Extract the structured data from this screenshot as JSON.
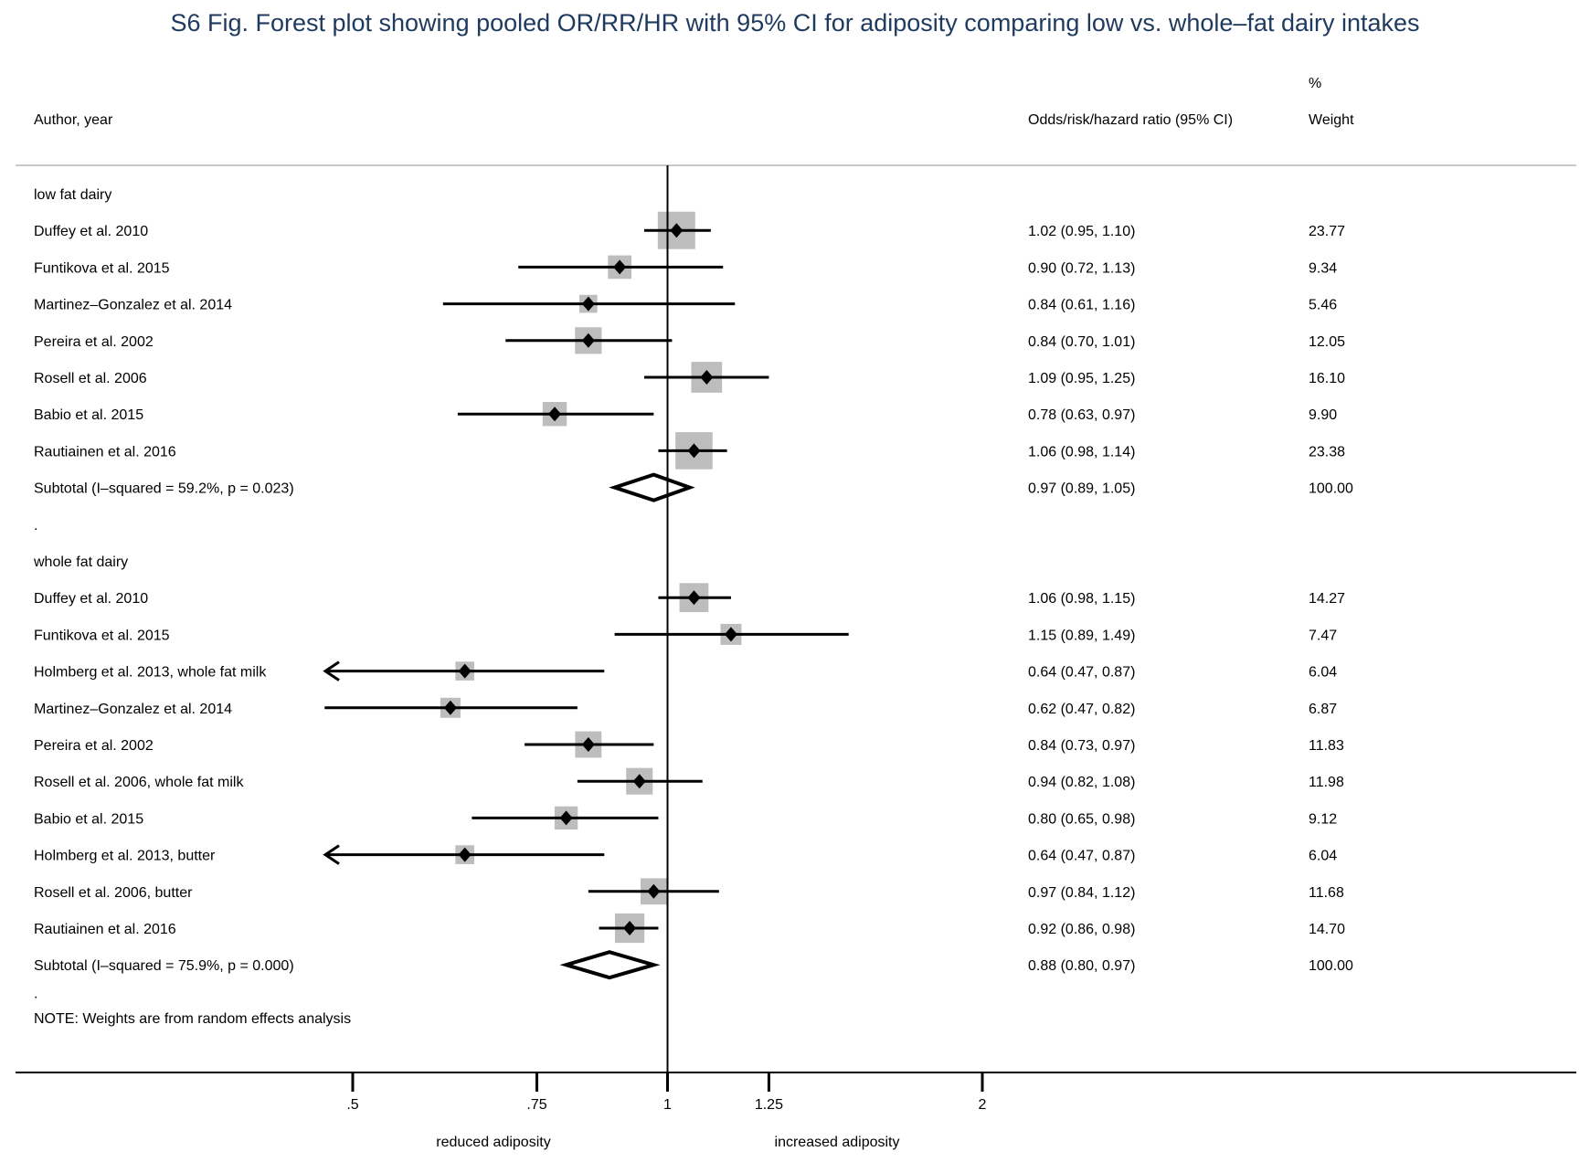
{
  "chart_data": {
    "type": "forest",
    "title": "S6 Fig. Forest plot showing pooled OR/RR/HR with 95% CI for adiposity comparing low vs. whole–fat dairy intakes",
    "headers": {
      "author": "Author, year",
      "effect": "Odds/risk/hazard ratio (95% CI)",
      "weight_line1": "%",
      "weight_line2": "Weight"
    },
    "null_value": 1,
    "axis": {
      "scale": "log",
      "ticks": [
        0.5,
        0.75,
        1,
        1.25,
        2
      ],
      "tick_labels": [
        ".5",
        ".75",
        "1",
        "1.25",
        "2"
      ],
      "left_label": "reduced adiposity",
      "right_label": "increased adiposity"
    },
    "colors": {
      "line": "#000000",
      "weight_box": "#bdbdbd",
      "title": "#1f3a5f",
      "rule": "#c8c8c8"
    },
    "groups": [
      {
        "name": "low fat dairy",
        "studies": [
          {
            "label": "Duffey et al. 2010",
            "est": 1.02,
            "lo": 0.95,
            "hi": 1.1,
            "ci_text": "1.02 (0.95, 1.10)",
            "weight": 23.77,
            "weight_text": "23.77"
          },
          {
            "label": "Funtikova et al. 2015",
            "est": 0.9,
            "lo": 0.72,
            "hi": 1.13,
            "ci_text": "0.90 (0.72, 1.13)",
            "weight": 9.34,
            "weight_text": "9.34"
          },
          {
            "label": "Martinez–Gonzalez et al. 2014",
            "est": 0.84,
            "lo": 0.61,
            "hi": 1.16,
            "ci_text": "0.84 (0.61, 1.16)",
            "weight": 5.46,
            "weight_text": "5.46"
          },
          {
            "label": "Pereira et al. 2002",
            "est": 0.84,
            "lo": 0.7,
            "hi": 1.01,
            "ci_text": "0.84 (0.70, 1.01)",
            "weight": 12.05,
            "weight_text": "12.05"
          },
          {
            "label": "Rosell et al. 2006",
            "est": 1.09,
            "lo": 0.95,
            "hi": 1.25,
            "ci_text": "1.09 (0.95, 1.25)",
            "weight": 16.1,
            "weight_text": "16.10"
          },
          {
            "label": "Babio et al. 2015",
            "est": 0.78,
            "lo": 0.63,
            "hi": 0.97,
            "ci_text": "0.78 (0.63, 0.97)",
            "weight": 9.9,
            "weight_text": "9.90"
          },
          {
            "label": "Rautiainen et al. 2016",
            "est": 1.06,
            "lo": 0.98,
            "hi": 1.14,
            "ci_text": "1.06 (0.98, 1.14)",
            "weight": 23.38,
            "weight_text": "23.38"
          }
        ],
        "subtotal": {
          "label": "Subtotal  (I–squared = 59.2%, p = 0.023)",
          "est": 0.97,
          "lo": 0.89,
          "hi": 1.05,
          "ci_text": "0.97 (0.89, 1.05)",
          "weight_text": "100.00"
        }
      },
      {
        "name": "whole fat dairy",
        "studies": [
          {
            "label": "Duffey et al. 2010",
            "est": 1.06,
            "lo": 0.98,
            "hi": 1.15,
            "ci_text": "1.06 (0.98, 1.15)",
            "weight": 14.27,
            "weight_text": "14.27"
          },
          {
            "label": "Funtikova et al. 2015",
            "est": 1.15,
            "lo": 0.89,
            "hi": 1.49,
            "ci_text": "1.15 (0.89, 1.49)",
            "weight": 7.47,
            "weight_text": "7.47"
          },
          {
            "label": "Holmberg et al. 2013, whole fat milk",
            "est": 0.64,
            "lo": 0.47,
            "hi": 0.87,
            "ci_text": "0.64 (0.47, 0.87)",
            "weight": 6.04,
            "weight_text": "6.04",
            "arrow_left": true
          },
          {
            "label": "Martinez–Gonzalez et al. 2014",
            "est": 0.62,
            "lo": 0.47,
            "hi": 0.82,
            "ci_text": "0.62 (0.47, 0.82)",
            "weight": 6.87,
            "weight_text": "6.87"
          },
          {
            "label": "Pereira et al. 2002",
            "est": 0.84,
            "lo": 0.73,
            "hi": 0.97,
            "ci_text": "0.84 (0.73, 0.97)",
            "weight": 11.83,
            "weight_text": "11.83"
          },
          {
            "label": "Rosell et al. 2006, whole fat milk",
            "est": 0.94,
            "lo": 0.82,
            "hi": 1.08,
            "ci_text": "0.94 (0.82, 1.08)",
            "weight": 11.98,
            "weight_text": "11.98"
          },
          {
            "label": "Babio et al. 2015",
            "est": 0.8,
            "lo": 0.65,
            "hi": 0.98,
            "ci_text": "0.80 (0.65, 0.98)",
            "weight": 9.12,
            "weight_text": "9.12"
          },
          {
            "label": "Holmberg et al. 2013, butter",
            "est": 0.64,
            "lo": 0.47,
            "hi": 0.87,
            "ci_text": "0.64 (0.47, 0.87)",
            "weight": 6.04,
            "weight_text": "6.04",
            "arrow_left": true
          },
          {
            "label": "Rosell et al. 2006, butter",
            "est": 0.97,
            "lo": 0.84,
            "hi": 1.12,
            "ci_text": "0.97 (0.84, 1.12)",
            "weight": 11.68,
            "weight_text": "11.68"
          },
          {
            "label": "Rautiainen et al. 2016",
            "est": 0.92,
            "lo": 0.86,
            "hi": 0.98,
            "ci_text": "0.92 (0.86, 0.98)",
            "weight": 14.7,
            "weight_text": "14.70"
          }
        ],
        "subtotal": {
          "label": "Subtotal  (I–squared = 75.9%, p = 0.000)",
          "est": 0.88,
          "lo": 0.8,
          "hi": 0.97,
          "ci_text": "0.88 (0.80, 0.97)",
          "weight_text": "100.00"
        }
      }
    ],
    "separator_dots": [
      ".",
      "."
    ],
    "note": "NOTE: Weights are from random effects analysis"
  }
}
